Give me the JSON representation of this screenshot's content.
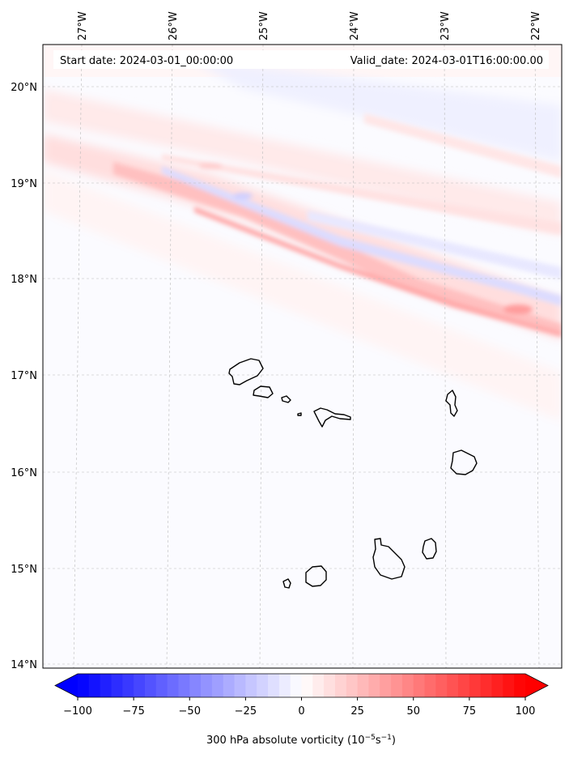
{
  "header": {
    "start_date": "Start date: 2024-03-01_00:00:00",
    "valid_date": "Valid_date: 2024-03-01T16:00:00.00"
  },
  "map": {
    "lon_labels": [
      "27°W",
      "26°W",
      "25°W",
      "24°W",
      "23°W",
      "22°W"
    ],
    "lat_labels": [
      "20°N",
      "19°N",
      "18°N",
      "17°N",
      "16°N",
      "15°N",
      "14°N"
    ],
    "gridlines": true,
    "islands": [
      "Santo Antão",
      "São Vicente",
      "Santa Luzia",
      "Branco",
      "São Nicolau",
      "Sal",
      "Boa Vista",
      "Maio",
      "Santiago",
      "Fogo",
      "Brava"
    ]
  },
  "colorbar": {
    "ticks": [
      "−100",
      "−75",
      "−50",
      "−25",
      "0",
      "25",
      "50",
      "75",
      "100"
    ],
    "label_main": "300 hPa absolute vorticity (10",
    "label_exp1": "−5",
    "label_mid": "s",
    "label_exp2": "−1",
    "label_end": ")",
    "range": [
      -100,
      100
    ],
    "extend": "both",
    "colors": {
      "negative": "#0000ff",
      "zero": "#ffffff",
      "positive": "#ff0000"
    }
  }
}
